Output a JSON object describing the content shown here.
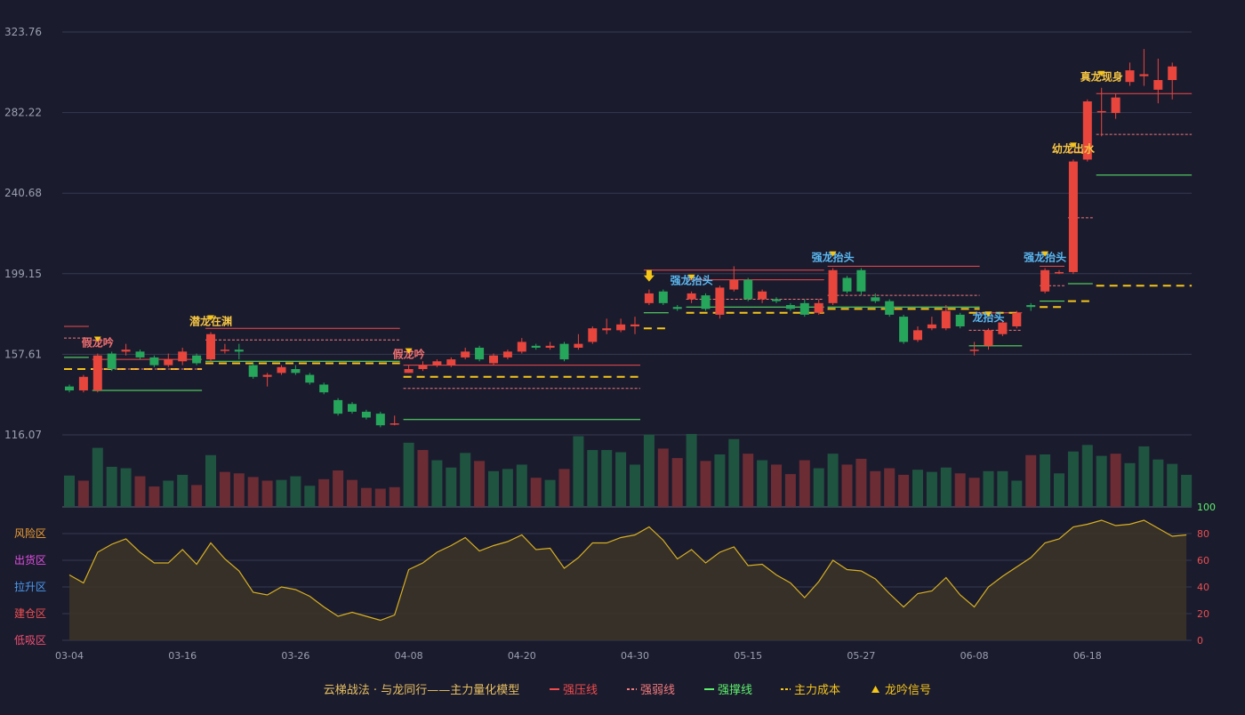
{
  "colors": {
    "background": "#1b1b2e",
    "up": "#e8453c",
    "down": "#26a65b",
    "vol_up": "#6b2c34",
    "vol_down": "#1f5440",
    "resist": "#ef4b4b",
    "weak": "#f07a7a",
    "support": "#5cf06a",
    "cost": "#f5c518",
    "signal": "#f5c518",
    "blue_label": "#5ab8f0",
    "gold_label": "#f5c542",
    "red_label": "#f07070",
    "osc_line": "#d8b020",
    "osc_fill": "#3a3328",
    "grid": "#363a4e",
    "axis_text": "#9aa0b0",
    "right_axis_text": "#5cf06a"
  },
  "chart_data": {
    "type": "candlestick",
    "price_axis": {
      "ticks": [
        "323.76",
        "282.22",
        "240.68",
        "199.15",
        "157.61",
        "116.07"
      ],
      "min": 116.07,
      "max": 323.76
    },
    "x_ticks": [
      {
        "i": 0,
        "label": "03-04"
      },
      {
        "i": 8,
        "label": "03-16"
      },
      {
        "i": 16,
        "label": "03-26"
      },
      {
        "i": 24,
        "label": "04-08"
      },
      {
        "i": 32,
        "label": "04-20"
      },
      {
        "i": 40,
        "label": "04-30"
      },
      {
        "i": 48,
        "label": "05-15"
      },
      {
        "i": 56,
        "label": "05-27"
      },
      {
        "i": 64,
        "label": "06-08"
      },
      {
        "i": 72,
        "label": "06-18"
      }
    ],
    "candles": [
      [
        141,
        139,
        142,
        138
      ],
      [
        139,
        146,
        147,
        138
      ],
      [
        139,
        157,
        158,
        138
      ],
      [
        158,
        150,
        159,
        149
      ],
      [
        159,
        160,
        163,
        157
      ],
      [
        159,
        156,
        160,
        155
      ],
      [
        156,
        152,
        157,
        151
      ],
      [
        152,
        155,
        158,
        151
      ],
      [
        154,
        159,
        161,
        152
      ],
      [
        157,
        153,
        158,
        152
      ],
      [
        155,
        168,
        169,
        154
      ],
      [
        160,
        160,
        163,
        158
      ],
      [
        160,
        159,
        163,
        155
      ],
      [
        152,
        146,
        153,
        145
      ],
      [
        146,
        147,
        148,
        141
      ],
      [
        148,
        151,
        152,
        147
      ],
      [
        150,
        148,
        152,
        147
      ],
      [
        147,
        143,
        148,
        142
      ],
      [
        142,
        138,
        143,
        137
      ],
      [
        134,
        127,
        135,
        126
      ],
      [
        132,
        128,
        133,
        127
      ],
      [
        128,
        125,
        129,
        124
      ],
      [
        127,
        121,
        128,
        120
      ],
      [
        122,
        122,
        126,
        121
      ],
      [
        148,
        150,
        152,
        148
      ],
      [
        150,
        152,
        154,
        149
      ],
      [
        152,
        154,
        155,
        151
      ],
      [
        152,
        155,
        156,
        151
      ],
      [
        156,
        159,
        161,
        155
      ],
      [
        161,
        155,
        162,
        154
      ],
      [
        153,
        157,
        158,
        152
      ],
      [
        156,
        159,
        160,
        155
      ],
      [
        159,
        164,
        166,
        158
      ],
      [
        162,
        161,
        163,
        160
      ],
      [
        161,
        162,
        164,
        160
      ],
      [
        163,
        155,
        164,
        154
      ],
      [
        161,
        163,
        168,
        160
      ],
      [
        164,
        171,
        172,
        163
      ],
      [
        170,
        171,
        176,
        168
      ],
      [
        170,
        173,
        176,
        169
      ],
      [
        172,
        173,
        177,
        168
      ],
      [
        184,
        189,
        191,
        183
      ],
      [
        190,
        184,
        191,
        183
      ],
      [
        182,
        181,
        183,
        180
      ],
      [
        186,
        189,
        190,
        184
      ],
      [
        188,
        181,
        189,
        180
      ],
      [
        178,
        192,
        193,
        176
      ],
      [
        191,
        196,
        203,
        190
      ],
      [
        196,
        186,
        197,
        185
      ],
      [
        186,
        190,
        191,
        184
      ],
      [
        186,
        185,
        187,
        184
      ],
      [
        183,
        181,
        184,
        180
      ],
      [
        184,
        178,
        186,
        177
      ],
      [
        179,
        184,
        186,
        178
      ],
      [
        184,
        201,
        202,
        183
      ],
      [
        197,
        190,
        198,
        189
      ],
      [
        201,
        190,
        202,
        188
      ],
      [
        187,
        185,
        189,
        184
      ],
      [
        185,
        178,
        186,
        177
      ],
      [
        177,
        164,
        178,
        163
      ],
      [
        165,
        170,
        172,
        164
      ],
      [
        171,
        173,
        177,
        170
      ],
      [
        171,
        180,
        183,
        170
      ],
      [
        178,
        172,
        179,
        171
      ],
      [
        160,
        160,
        164,
        157
      ],
      [
        162,
        170,
        171,
        160
      ],
      [
        168,
        174,
        175,
        167
      ],
      [
        172,
        179,
        180,
        171
      ],
      [
        183,
        182,
        184,
        180
      ],
      [
        190,
        201,
        202,
        189
      ],
      [
        200,
        200,
        201,
        199
      ],
      [
        200,
        257,
        258,
        199
      ],
      [
        258,
        288,
        289,
        257
      ],
      [
        283,
        283,
        295,
        270
      ],
      [
        282,
        290,
        292,
        279
      ],
      [
        298,
        304,
        308,
        296
      ],
      [
        301,
        302,
        315,
        296
      ],
      [
        294,
        299,
        310,
        287
      ],
      [
        299,
        306,
        308,
        289
      ]
    ],
    "volume": [
      [
        0,
        0.43
      ],
      [
        1,
        0.36
      ],
      [
        0,
        0.81
      ],
      [
        0,
        0.55
      ],
      [
        0,
        0.53
      ],
      [
        1,
        0.42
      ],
      [
        1,
        0.28
      ],
      [
        0,
        0.36
      ],
      [
        0,
        0.44
      ],
      [
        1,
        0.3
      ],
      [
        0,
        0.71
      ],
      [
        1,
        0.48
      ],
      [
        1,
        0.46
      ],
      [
        1,
        0.41
      ],
      [
        1,
        0.36
      ],
      [
        0,
        0.37
      ],
      [
        0,
        0.42
      ],
      [
        0,
        0.29
      ],
      [
        1,
        0.38
      ],
      [
        1,
        0.5
      ],
      [
        1,
        0.37
      ],
      [
        1,
        0.26
      ],
      [
        1,
        0.25
      ],
      [
        1,
        0.27
      ],
      [
        0,
        0.88
      ],
      [
        1,
        0.78
      ],
      [
        0,
        0.64
      ],
      [
        0,
        0.54
      ],
      [
        0,
        0.74
      ],
      [
        1,
        0.63
      ],
      [
        0,
        0.49
      ],
      [
        0,
        0.52
      ],
      [
        0,
        0.58
      ],
      [
        1,
        0.4
      ],
      [
        0,
        0.37
      ],
      [
        1,
        0.52
      ],
      [
        0,
        0.97
      ],
      [
        0,
        0.78
      ],
      [
        0,
        0.78
      ],
      [
        0,
        0.75
      ],
      [
        0,
        0.58
      ],
      [
        0,
        0.99
      ],
      [
        1,
        0.8
      ],
      [
        1,
        0.67
      ],
      [
        0,
        1.0
      ],
      [
        1,
        0.63
      ],
      [
        0,
        0.72
      ],
      [
        0,
        0.93
      ],
      [
        1,
        0.73
      ],
      [
        0,
        0.64
      ],
      [
        1,
        0.58
      ],
      [
        1,
        0.45
      ],
      [
        1,
        0.64
      ],
      [
        0,
        0.53
      ],
      [
        0,
        0.73
      ],
      [
        1,
        0.58
      ],
      [
        1,
        0.66
      ],
      [
        1,
        0.49
      ],
      [
        1,
        0.53
      ],
      [
        1,
        0.44
      ],
      [
        0,
        0.51
      ],
      [
        0,
        0.48
      ],
      [
        0,
        0.54
      ],
      [
        1,
        0.46
      ],
      [
        1,
        0.4
      ],
      [
        0,
        0.49
      ],
      [
        0,
        0.49
      ],
      [
        0,
        0.36
      ],
      [
        1,
        0.71
      ],
      [
        0,
        0.72
      ],
      [
        0,
        0.46
      ],
      [
        0,
        0.76
      ],
      [
        0,
        0.85
      ],
      [
        0,
        0.7
      ],
      [
        1,
        0.73
      ],
      [
        0,
        0.6
      ],
      [
        0,
        0.83
      ],
      [
        0,
        0.65
      ],
      [
        0,
        0.59
      ],
      [
        0,
        0.44
      ]
    ],
    "oscillator": {
      "left_labels": [
        "风险区",
        "出货区",
        "拉升区",
        "建仓区",
        "低吸区"
      ],
      "right_ticks": [
        "100",
        "80",
        "60",
        "40",
        "20",
        "0"
      ],
      "values": [
        49,
        43,
        66,
        72,
        76,
        66,
        58,
        58,
        68,
        57,
        73,
        61,
        52,
        36,
        34,
        40,
        38,
        33,
        25,
        18,
        21,
        18,
        15,
        19,
        53,
        58,
        66,
        71,
        77,
        67,
        71,
        74,
        79,
        68,
        69,
        54,
        62,
        73,
        73,
        77,
        79,
        85,
        75,
        61,
        68,
        58,
        66,
        70,
        56,
        57,
        49,
        43,
        32,
        44,
        60,
        53,
        52,
        46,
        35,
        25,
        35,
        37,
        47,
        34,
        25,
        40,
        48,
        55,
        62,
        73,
        76,
        85,
        87,
        90,
        86,
        87,
        90,
        84,
        78,
        79
      ]
    },
    "lines": [
      {
        "kind": "resist",
        "i0": 0,
        "i1": 1,
        "y": 172
      },
      {
        "kind": "weak",
        "i0": 0,
        "i1": 1,
        "y": 166
      },
      {
        "kind": "support",
        "i0": 0,
        "i1": 1,
        "y": 156
      },
      {
        "kind": "cost",
        "i0": 0,
        "i1": 9,
        "y": 150
      },
      {
        "kind": "resist",
        "i0": 2,
        "i1": 9,
        "y": 155
      },
      {
        "kind": "weak",
        "i0": 2,
        "i1": 9,
        "y": 150
      },
      {
        "kind": "support",
        "i0": 2,
        "i1": 9,
        "y": 139
      },
      {
        "kind": "resist",
        "i0": 10,
        "i1": 23,
        "y": 171
      },
      {
        "kind": "weak",
        "i0": 10,
        "i1": 23,
        "y": 165
      },
      {
        "kind": "cost",
        "i0": 10,
        "i1": 23,
        "y": 153
      },
      {
        "kind": "support",
        "i0": 10,
        "i1": 23,
        "y": 154
      },
      {
        "kind": "resist",
        "i0": 24,
        "i1": 40,
        "y": 152
      },
      {
        "kind": "cost",
        "i0": 24,
        "i1": 40,
        "y": 146
      },
      {
        "kind": "weak",
        "i0": 24,
        "i1": 40,
        "y": 140
      },
      {
        "kind": "support",
        "i0": 24,
        "i1": 40,
        "y": 124
      },
      {
        "kind": "support",
        "i0": 41,
        "i1": 42,
        "y": 179
      },
      {
        "kind": "cost",
        "i0": 41,
        "i1": 42,
        "y": 171
      },
      {
        "kind": "resist",
        "i0": 41,
        "i1": 53,
        "y": 201
      },
      {
        "kind": "resist",
        "i0": 44,
        "i1": 53,
        "y": 196
      },
      {
        "kind": "weak",
        "i0": 44,
        "i1": 53,
        "y": 186
      },
      {
        "kind": "support",
        "i0": 44,
        "i1": 53,
        "y": 182
      },
      {
        "kind": "cost",
        "i0": 44,
        "i1": 53,
        "y": 179
      },
      {
        "kind": "resist",
        "i0": 54,
        "i1": 64,
        "y": 203
      },
      {
        "kind": "weak",
        "i0": 54,
        "i1": 64,
        "y": 188
      },
      {
        "kind": "support",
        "i0": 54,
        "i1": 64,
        "y": 182
      },
      {
        "kind": "cost",
        "i0": 54,
        "i1": 64,
        "y": 181
      },
      {
        "kind": "resist",
        "i0": 64,
        "i1": 67,
        "y": 179
      },
      {
        "kind": "weak",
        "i0": 64,
        "i1": 67,
        "y": 170
      },
      {
        "kind": "cost",
        "i0": 64,
        "i1": 67,
        "y": 179
      },
      {
        "kind": "support",
        "i0": 64,
        "i1": 67,
        "y": 162
      },
      {
        "kind": "resist",
        "i0": 69,
        "i1": 70,
        "y": 203
      },
      {
        "kind": "weak",
        "i0": 69,
        "i1": 70,
        "y": 193
      },
      {
        "kind": "support",
        "i0": 69,
        "i1": 70,
        "y": 185
      },
      {
        "kind": "cost",
        "i0": 69,
        "i1": 70,
        "y": 182
      },
      {
        "kind": "resist",
        "i0": 71,
        "i1": 72,
        "y": 262
      },
      {
        "kind": "weak",
        "i0": 71,
        "i1": 72,
        "y": 228
      },
      {
        "kind": "support",
        "i0": 71,
        "i1": 72,
        "y": 194
      },
      {
        "kind": "cost",
        "i0": 71,
        "i1": 72,
        "y": 185
      },
      {
        "kind": "resist",
        "i0": 73,
        "i1": 79,
        "y": 292
      },
      {
        "kind": "weak",
        "i0": 73,
        "i1": 79,
        "y": 271
      },
      {
        "kind": "support",
        "i0": 73,
        "i1": 79,
        "y": 250
      },
      {
        "kind": "cost",
        "i0": 73,
        "i1": 79,
        "y": 193
      }
    ],
    "signals": [
      {
        "i": 2,
        "text": "假龙吟",
        "style": "red_label"
      },
      {
        "i": 10,
        "text": "潜龙在渊",
        "style": "gold_label"
      },
      {
        "i": 24,
        "text": "假龙吟",
        "style": "red_label"
      },
      {
        "i": 41,
        "text": "",
        "style": "gold_label"
      },
      {
        "i": 44,
        "text": "强龙抬头",
        "style": "blue_label"
      },
      {
        "i": 54,
        "text": "强龙抬头",
        "style": "blue_label"
      },
      {
        "i": 65,
        "text": "龙抬头",
        "style": "blue_label"
      },
      {
        "i": 69,
        "text": "强龙抬头",
        "style": "blue_label"
      },
      {
        "i": 71,
        "text": "幼龙出水",
        "style": "gold_label"
      },
      {
        "i": 73,
        "text": "真龙现身",
        "style": "gold_label"
      }
    ]
  },
  "legend": {
    "title": "云梯战法 · 与龙同行——主力量化模型",
    "items": [
      {
        "label": "强压线",
        "style": "resist"
      },
      {
        "label": "强弱线",
        "style": "weak"
      },
      {
        "label": "强撑线",
        "style": "support"
      },
      {
        "label": "主力成本",
        "style": "cost"
      },
      {
        "label": "龙吟信号",
        "style": "signal"
      }
    ]
  }
}
